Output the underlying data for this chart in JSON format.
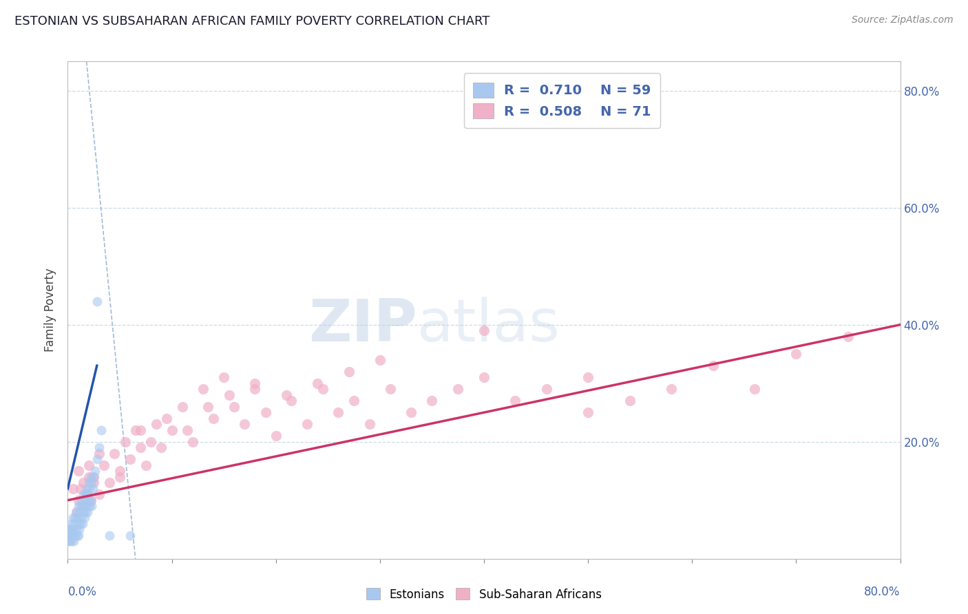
{
  "title": "ESTONIAN VS SUBSAHARAN AFRICAN FAMILY POVERTY CORRELATION CHART",
  "source_text": "Source: ZipAtlas.com",
  "ylabel": "Family Poverty",
  "x_range": [
    0.0,
    0.8
  ],
  "y_range": [
    0.0,
    0.85
  ],
  "blue_R": 0.71,
  "blue_N": 59,
  "pink_R": 0.508,
  "pink_N": 71,
  "blue_color": "#a8c8f0",
  "pink_color": "#f0b0c8",
  "blue_line_color": "#2255aa",
  "pink_line_color": "#cc3366",
  "dash_color": "#88aacc",
  "watermark_color": "#c8d8e8",
  "background_color": "#ffffff",
  "grid_color": "#c8dce8",
  "title_color": "#1a1a2e",
  "source_color": "#888888",
  "axis_label_color": "#4466aa",
  "ylabel_color": "#444444",
  "blue_scatter_x": [
    0.001,
    0.002,
    0.002,
    0.003,
    0.003,
    0.004,
    0.004,
    0.005,
    0.005,
    0.005,
    0.006,
    0.006,
    0.007,
    0.007,
    0.008,
    0.008,
    0.009,
    0.009,
    0.01,
    0.01,
    0.01,
    0.011,
    0.011,
    0.012,
    0.012,
    0.013,
    0.013,
    0.014,
    0.014,
    0.015,
    0.015,
    0.016,
    0.016,
    0.017,
    0.017,
    0.018,
    0.018,
    0.019,
    0.019,
    0.02,
    0.02,
    0.021,
    0.021,
    0.022,
    0.022,
    0.023,
    0.023,
    0.024,
    0.025,
    0.026,
    0.028,
    0.03,
    0.032,
    0.04,
    0.06,
    0.001,
    0.002,
    0.003,
    0.028
  ],
  "blue_scatter_y": [
    0.04,
    0.05,
    0.03,
    0.06,
    0.04,
    0.05,
    0.03,
    0.07,
    0.04,
    0.05,
    0.06,
    0.03,
    0.07,
    0.04,
    0.08,
    0.05,
    0.07,
    0.04,
    0.09,
    0.06,
    0.04,
    0.08,
    0.05,
    0.09,
    0.06,
    0.1,
    0.07,
    0.09,
    0.06,
    0.11,
    0.08,
    0.1,
    0.07,
    0.11,
    0.08,
    0.12,
    0.09,
    0.11,
    0.08,
    0.13,
    0.1,
    0.12,
    0.09,
    0.14,
    0.1,
    0.13,
    0.09,
    0.12,
    0.14,
    0.15,
    0.17,
    0.19,
    0.22,
    0.04,
    0.04,
    0.03,
    0.04,
    0.05,
    0.44
  ],
  "pink_scatter_x": [
    0.005,
    0.008,
    0.01,
    0.012,
    0.015,
    0.018,
    0.02,
    0.022,
    0.025,
    0.03,
    0.035,
    0.04,
    0.045,
    0.05,
    0.055,
    0.06,
    0.065,
    0.07,
    0.075,
    0.08,
    0.085,
    0.09,
    0.1,
    0.11,
    0.12,
    0.13,
    0.14,
    0.15,
    0.16,
    0.17,
    0.18,
    0.19,
    0.2,
    0.215,
    0.23,
    0.245,
    0.26,
    0.275,
    0.29,
    0.31,
    0.33,
    0.35,
    0.375,
    0.4,
    0.43,
    0.46,
    0.5,
    0.54,
    0.58,
    0.62,
    0.66,
    0.7,
    0.75,
    0.01,
    0.015,
    0.02,
    0.025,
    0.03,
    0.05,
    0.07,
    0.095,
    0.115,
    0.135,
    0.155,
    0.18,
    0.21,
    0.24,
    0.27,
    0.3,
    0.4,
    0.5
  ],
  "pink_scatter_y": [
    0.12,
    0.08,
    0.1,
    0.12,
    0.09,
    0.11,
    0.14,
    0.1,
    0.13,
    0.11,
    0.16,
    0.13,
    0.18,
    0.15,
    0.2,
    0.17,
    0.22,
    0.19,
    0.16,
    0.2,
    0.23,
    0.19,
    0.22,
    0.26,
    0.2,
    0.29,
    0.24,
    0.31,
    0.26,
    0.23,
    0.29,
    0.25,
    0.21,
    0.27,
    0.23,
    0.29,
    0.25,
    0.27,
    0.23,
    0.29,
    0.25,
    0.27,
    0.29,
    0.31,
    0.27,
    0.29,
    0.31,
    0.27,
    0.29,
    0.33,
    0.29,
    0.35,
    0.38,
    0.15,
    0.13,
    0.16,
    0.14,
    0.18,
    0.14,
    0.22,
    0.24,
    0.22,
    0.26,
    0.28,
    0.3,
    0.28,
    0.3,
    0.32,
    0.34,
    0.39,
    0.25
  ],
  "blue_line_x": [
    0.0,
    0.028
  ],
  "blue_line_y": [
    0.12,
    0.33
  ],
  "pink_line_x": [
    0.0,
    0.8
  ],
  "pink_line_y": [
    0.1,
    0.4
  ],
  "dash_line_x": [
    0.018,
    0.065
  ],
  "dash_line_y": [
    0.85,
    0.0
  ]
}
